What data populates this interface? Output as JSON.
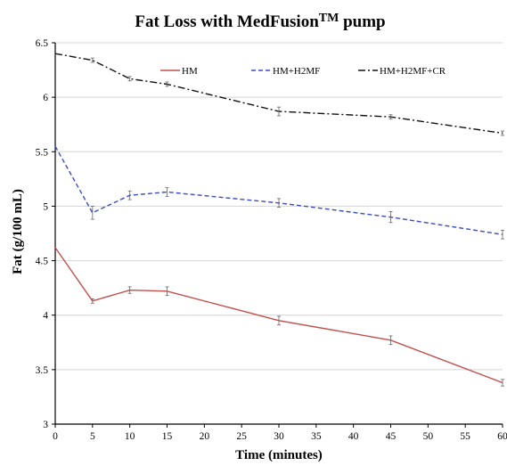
{
  "chart_data": {
    "type": "line",
    "title": "Fat Loss with MedFusion",
    "title_superscript": "TM",
    "title_suffix": " pump",
    "xlabel": "Time (minutes)",
    "ylabel": "Fat (g/100 mL)",
    "xlim": [
      0,
      60
    ],
    "ylim": [
      3,
      6.5
    ],
    "x_ticks": [
      0,
      5,
      10,
      15,
      20,
      25,
      30,
      35,
      40,
      45,
      50,
      55,
      60
    ],
    "y_ticks": [
      "3",
      "3.5",
      "4",
      "4.5",
      "5",
      "5.5",
      "6",
      "6.5"
    ],
    "grid": "horizontal",
    "legend_position": "top",
    "x": [
      0,
      5,
      10,
      15,
      30,
      45,
      60
    ],
    "series": [
      {
        "name": "HM",
        "color": "#c0504d",
        "dash": "solid",
        "values": [
          4.62,
          4.13,
          4.23,
          4.22,
          3.95,
          3.77,
          3.38
        ],
        "errors": [
          0.0,
          0.02,
          0.03,
          0.04,
          0.04,
          0.04,
          0.03
        ]
      },
      {
        "name": "HM+H2MF",
        "color": "#3b4cc0",
        "dash": "dashed",
        "values": [
          5.55,
          4.94,
          5.1,
          5.13,
          5.03,
          4.9,
          4.74
        ],
        "errors": [
          0.0,
          0.06,
          0.04,
          0.04,
          0.04,
          0.05,
          0.04
        ]
      },
      {
        "name": "HM+H2MF+CR",
        "color": "#111111",
        "dash": "dashdot",
        "values": [
          6.4,
          6.34,
          6.17,
          6.12,
          5.87,
          5.82,
          5.67
        ],
        "errors": [
          0.0,
          0.02,
          0.02,
          0.02,
          0.04,
          0.02,
          0.02
        ]
      }
    ]
  }
}
